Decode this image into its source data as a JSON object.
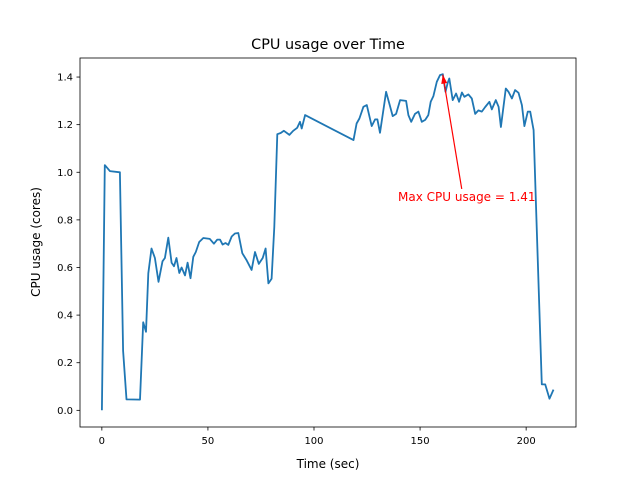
{
  "chart_data": {
    "type": "line",
    "title": "CPU usage over Time",
    "xlabel": "Time (sec)",
    "ylabel": "CPU usage (cores)",
    "xlim": [
      -10.3,
      223.5
    ],
    "ylim": [
      -0.07,
      1.48
    ],
    "xticks": [
      0,
      50,
      100,
      150,
      200
    ],
    "yticks": [
      0.0,
      0.2,
      0.4,
      0.6,
      0.8,
      1.0,
      1.2,
      1.4
    ],
    "ytick_labels": [
      "0.0",
      "0.2",
      "0.4",
      "0.6",
      "0.8",
      "1.0",
      "1.2",
      "1.4"
    ],
    "grid": false,
    "line_color": "#1f77b4",
    "annotation": {
      "text": "Max CPU usage = 1.41",
      "point": [
        160.7,
        1.41
      ],
      "text_at": [
        172,
        0.93
      ],
      "color": "#ff0000"
    },
    "series": [
      {
        "x": [
          0,
          1.4,
          3.8,
          8.5,
          10,
          11.6,
          18,
          19.5,
          20.8,
          21.9,
          23.4,
          25,
          26.7,
          28.6,
          29.7,
          31.3,
          32.9,
          34,
          35.2,
          36.5,
          37.6,
          39.2,
          40.4,
          41.8,
          43.1,
          44.3,
          45.9,
          47.8,
          50.9,
          52.8,
          54.4,
          55.7,
          56.9,
          58.3,
          59.6,
          61.2,
          62.7,
          64.3,
          66.2,
          68.3,
          70.6,
          72.2,
          74,
          75.8,
          77.2,
          78.5,
          80,
          81.3,
          82.7,
          84.3,
          85.8,
          88.4,
          90.2,
          92.1,
          93.4,
          94.2,
          95.8,
          118.6,
          120.1,
          121.4,
          123.3,
          124.9,
          127.2,
          128.8,
          129.9,
          131.1,
          134,
          135.5,
          137.1,
          138.7,
          140.6,
          143.4,
          144.5,
          145.8,
          147.6,
          149.2,
          150.8,
          152.4,
          153.9,
          155,
          156.3,
          157.9,
          159.4,
          160.7,
          162,
          163,
          163.8,
          165.4,
          167,
          168.4,
          169.7,
          170.9,
          172.8,
          174.4,
          176,
          177.5,
          179.1,
          180.7,
          182.7,
          183.8,
          185.7,
          187,
          188.1,
          190.4,
          191.7,
          193.3,
          194.8,
          196.4,
          198,
          199.2,
          200.8,
          201.9,
          203.5,
          204.7,
          207.4,
          209,
          211,
          212.9
        ],
        "y": [
          0,
          1.03,
          1.005,
          1.0,
          0.25,
          0.046,
          0.045,
          0.37,
          0.33,
          0.575,
          0.68,
          0.64,
          0.54,
          0.626,
          0.64,
          0.725,
          0.62,
          0.605,
          0.64,
          0.577,
          0.6,
          0.567,
          0.62,
          0.555,
          0.645,
          0.665,
          0.707,
          0.724,
          0.72,
          0.7,
          0.717,
          0.717,
          0.696,
          0.703,
          0.695,
          0.73,
          0.743,
          0.745,
          0.66,
          0.63,
          0.59,
          0.665,
          0.615,
          0.64,
          0.68,
          0.533,
          0.553,
          0.77,
          1.16,
          1.165,
          1.174,
          1.157,
          1.174,
          1.187,
          1.212,
          1.184,
          1.24,
          1.135,
          1.205,
          1.226,
          1.275,
          1.282,
          1.194,
          1.222,
          1.222,
          1.166,
          1.338,
          1.289,
          1.236,
          1.245,
          1.303,
          1.3,
          1.24,
          1.212,
          1.245,
          1.255,
          1.212,
          1.22,
          1.24,
          1.296,
          1.32,
          1.38,
          1.408,
          1.412,
          1.338,
          1.376,
          1.394,
          1.303,
          1.331,
          1.296,
          1.335,
          1.317,
          1.327,
          1.31,
          1.245,
          1.26,
          1.255,
          1.274,
          1.296,
          1.264,
          1.303,
          1.275,
          1.19,
          1.352,
          1.338,
          1.31,
          1.345,
          1.334,
          1.282,
          1.194,
          1.255,
          1.255,
          1.177,
          0.848,
          0.109,
          0.109,
          0.049,
          0.087
        ]
      }
    ]
  }
}
